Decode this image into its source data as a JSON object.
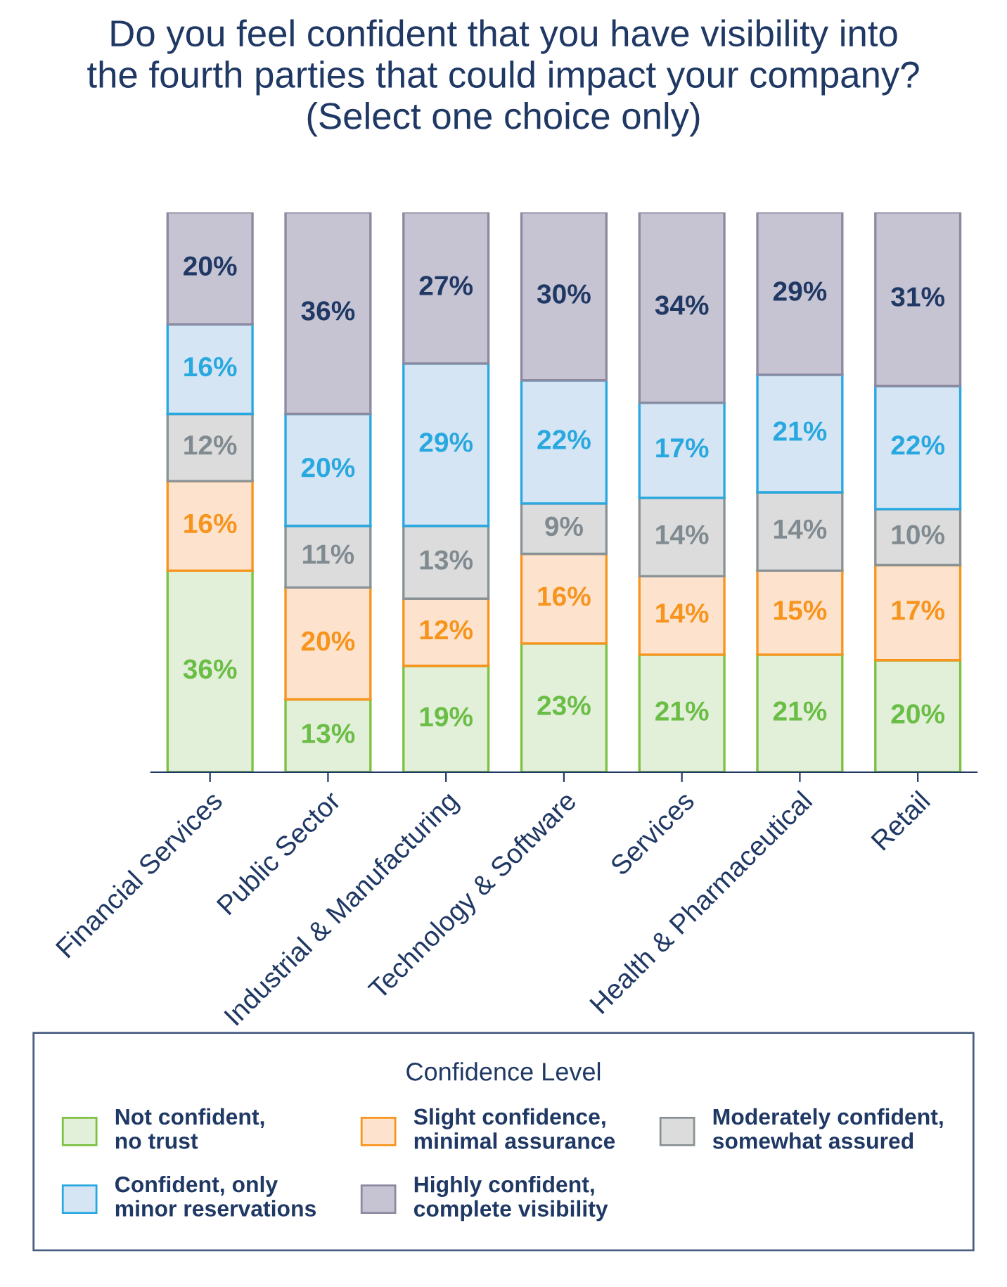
{
  "chart_data": {
    "type": "bar",
    "title": "Do you feel confident that you have visibility into\nthe fourth parties that could impact your company?\n(Select one choice only)",
    "categories": [
      "Financial Services",
      "Public Sector",
      "Industrial & Manufacturing",
      "Technology & Software",
      "Services",
      "Health & Pharmaceutical",
      "Retail"
    ],
    "stacked": true,
    "grid": false,
    "legend": "bottom",
    "legend_title": "Confidence Level",
    "tick_labels": "x",
    "series": [
      {
        "name": "Not confident,\nno trust",
        "color": "#e2efd9",
        "values": [
          36,
          13,
          19,
          23,
          21,
          21,
          20
        ],
        "value_labels": [
          "36%",
          "13%",
          "19%",
          "23%",
          "21%",
          "21%",
          "20%"
        ]
      },
      {
        "name": "Slight confidence,\nminimal assurance",
        "color": "#fde3cd",
        "values": [
          16,
          20,
          12,
          16,
          14,
          15,
          17
        ],
        "value_labels": [
          "16%",
          "20%",
          "12%",
          "16%",
          "14%",
          "15%",
          "17%"
        ]
      },
      {
        "name": "Moderately confident,\nsomewhat assured",
        "color": "#dcdcdc",
        "values": [
          12,
          11,
          13,
          9,
          14,
          14,
          10
        ],
        "value_labels": [
          "12%",
          "11%",
          "13%",
          "9%",
          "14%",
          "14%",
          "10%"
        ]
      },
      {
        "name": "Confident, only\nminor reservations",
        "color": "#d5e5f4",
        "values": [
          16,
          20,
          29,
          22,
          17,
          21,
          22
        ],
        "value_labels": [
          "16%",
          "20%",
          "29%",
          "22%",
          "17%",
          "21%",
          "22%"
        ]
      },
      {
        "name": "Highly confident,\ncomplete visibility",
        "color": "#c6c3d2",
        "values": [
          20,
          36,
          27,
          30,
          34,
          29,
          31
        ],
        "value_labels": [
          "20%",
          "36%",
          "27%",
          "30%",
          "34%",
          "29%",
          "31%"
        ]
      }
    ]
  }
}
